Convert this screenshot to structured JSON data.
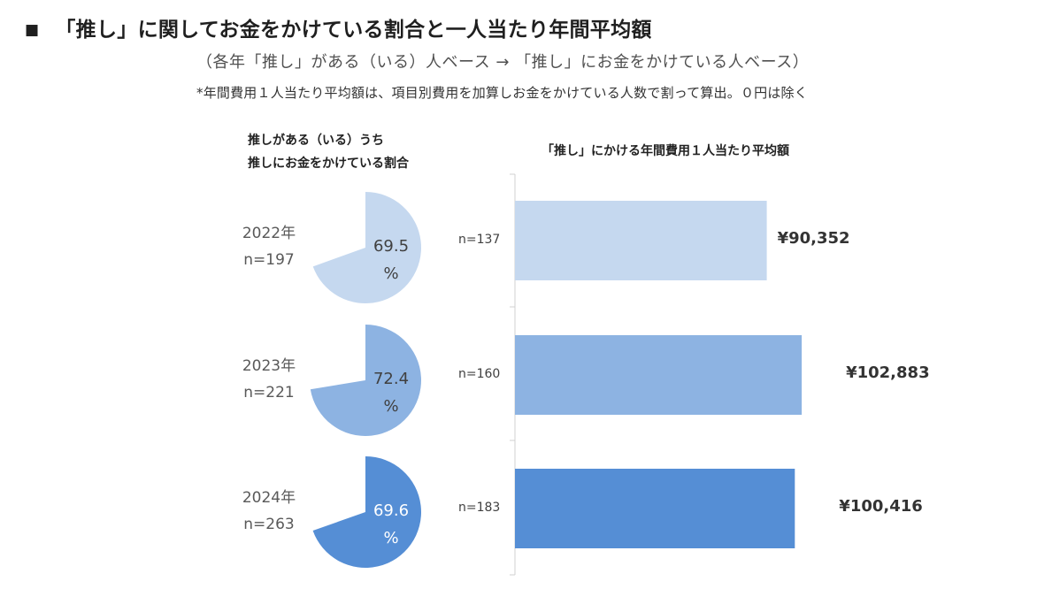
{
  "header": {
    "bullet": "■",
    "title": "「推し」に関してお金をかけている割合と一人当たり年間平均額",
    "subtitle": "（各年「推し」がある（いる）人ベース → 「推し」にお金をかけている人ベース）",
    "note": "*年間費用１人当たり平均額は、項目別費用を加算しお金をかけている人数で割って算出。０円は除く"
  },
  "left_heading": {
    "line1": "推しがある（いる）うち",
    "line2": "推しにお金をかけている割合"
  },
  "right_heading": "「推し」にかける年間費用１人当たり平均額",
  "chart_data": [
    {
      "type": "pie",
      "title": "推しがある（いる）うち 推しにお金をかけている割合",
      "unit": "%",
      "items": [
        {
          "year": "2022年",
          "n": "n=197",
          "value": 69.5,
          "value_label": "69.5",
          "pct_sign": "%",
          "color": "#c5d8ef",
          "text_color": "#404040"
        },
        {
          "year": "2023年",
          "n": "n=221",
          "value": 72.4,
          "value_label": "72.4",
          "pct_sign": "%",
          "color": "#8db3e2",
          "text_color": "#404040"
        },
        {
          "year": "2024年",
          "n": "n=263",
          "value": 69.6,
          "value_label": "69.6",
          "pct_sign": "%",
          "color": "#558ed5",
          "text_color": "#ffffff"
        }
      ]
    },
    {
      "type": "bar",
      "orientation": "horizontal",
      "title": "「推し」にかける年間費用１人当たり平均額",
      "unit": "円",
      "xlim": [
        0,
        110000
      ],
      "bars": [
        {
          "n": "n=137",
          "value": 90352,
          "label": "¥90,352",
          "color": "#c5d8ef"
        },
        {
          "n": "n=160",
          "value": 102883,
          "label": "¥102,883",
          "color": "#8db3e2"
        },
        {
          "n": "n=183",
          "value": 100416,
          "label": "¥100,416",
          "color": "#558ed5"
        }
      ]
    }
  ]
}
